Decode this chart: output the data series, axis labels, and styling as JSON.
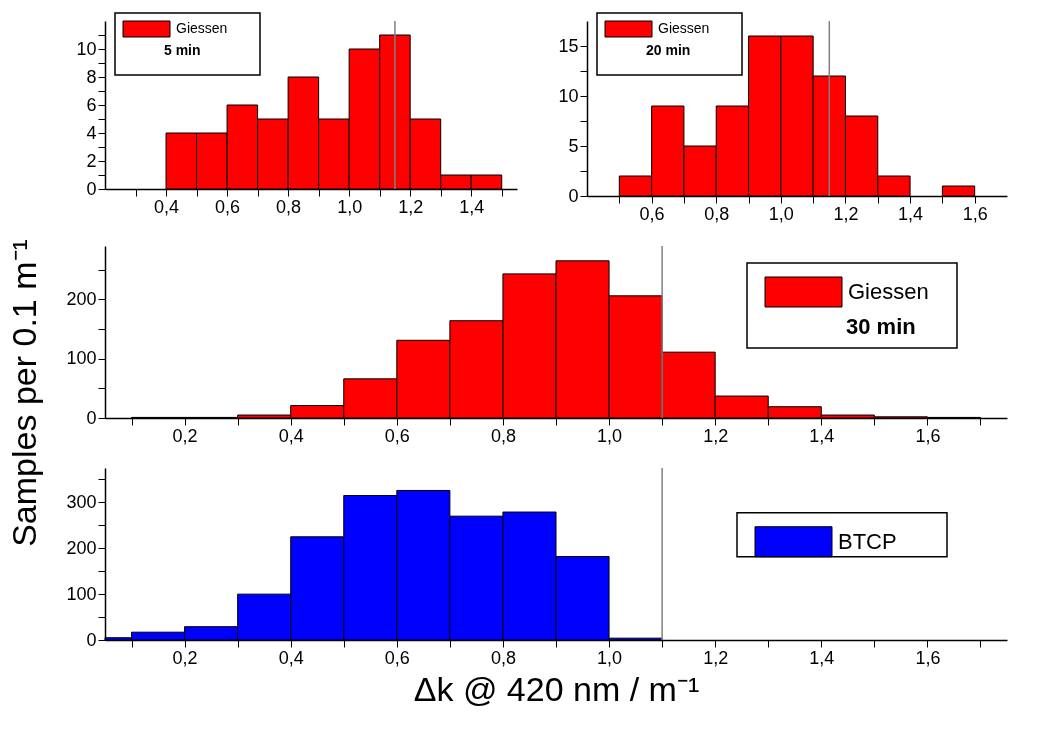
{
  "chart_data": [
    {
      "type": "histogram",
      "bins": [
        0.4,
        0.5,
        0.6,
        0.7,
        0.8,
        0.9,
        1.0,
        1.1,
        1.2,
        1.3,
        1.4,
        1.5
      ],
      "series": [
        {
          "name": "Giessen",
          "color": "#ff0000",
          "values": [
            4,
            4,
            6,
            5,
            8,
            5,
            10,
            11,
            5,
            1,
            1
          ]
        }
      ],
      "annotations": [
        "5 min"
      ],
      "legend": "top left",
      "xlim": [
        0.2,
        1.55
      ],
      "ylim": [
        0,
        12
      ],
      "xticks": [
        {
          "value": 0.3,
          "label": null
        },
        {
          "value": 0.4,
          "label": "0,4"
        },
        {
          "value": 0.5,
          "label": null
        },
        {
          "value": 0.6,
          "label": "0,6"
        },
        {
          "value": 0.7,
          "label": null
        },
        {
          "value": 0.8,
          "label": "0,8"
        },
        {
          "value": 0.9,
          "label": null
        },
        {
          "value": 1.0,
          "label": "1,0"
        },
        {
          "value": 1.1,
          "label": null
        },
        {
          "value": 1.2,
          "label": "1,2"
        },
        {
          "value": 1.3,
          "label": null
        },
        {
          "value": 1.4,
          "label": "1,4"
        },
        {
          "value": 1.5,
          "label": null
        }
      ],
      "yticks": [
        0,
        {
          "value": 1,
          "label": null
        },
        2,
        {
          "value": 3,
          "label": null
        },
        4,
        {
          "value": 5,
          "label": null
        },
        6,
        {
          "value": 7,
          "label": null
        },
        8,
        {
          "value": 9,
          "label": null
        },
        10,
        {
          "value": 11,
          "label": null
        }
      ],
      "ref_lines": [
        {
          "axis": "x",
          "value": 1.15,
          "color": "#808080"
        }
      ]
    },
    {
      "type": "histogram",
      "bins": [
        0.5,
        0.6,
        0.7,
        0.8,
        0.9,
        1.0,
        1.1,
        1.2,
        1.3,
        1.4,
        1.5,
        1.6
      ],
      "series": [
        {
          "name": "Giessen",
          "color": "#ff0000",
          "values": [
            2,
            9,
            5,
            9,
            16,
            16,
            12,
            8,
            2,
            0,
            1
          ]
        }
      ],
      "annotations": [
        "20 min"
      ],
      "legend": "top left",
      "xlim": [
        0.4,
        1.7
      ],
      "ylim": [
        0,
        17.5
      ],
      "xticks": [
        {
          "value": 0.5,
          "label": null
        },
        {
          "value": 0.6,
          "label": "0,6"
        },
        {
          "value": 0.7,
          "label": null
        },
        {
          "value": 0.8,
          "label": "0,8"
        },
        {
          "value": 0.9,
          "label": null
        },
        {
          "value": 1.0,
          "label": "1,0"
        },
        {
          "value": 1.1,
          "label": null
        },
        {
          "value": 1.2,
          "label": "1,2"
        },
        {
          "value": 1.3,
          "label": null
        },
        {
          "value": 1.4,
          "label": "1,4"
        },
        {
          "value": 1.5,
          "label": null
        },
        {
          "value": 1.6,
          "label": "1,6"
        }
      ],
      "yticks": [
        0,
        {
          "value": 2.5,
          "label": null
        },
        5,
        {
          "value": 7.5,
          "label": null
        },
        10,
        {
          "value": 12.5,
          "label": null
        },
        15
      ],
      "ref_lines": [
        {
          "axis": "x",
          "value": 1.15,
          "color": "#808080"
        }
      ]
    },
    {
      "type": "histogram",
      "bins": [
        0.1,
        0.2,
        0.3,
        0.4,
        0.5,
        0.6,
        0.7,
        0.8,
        0.9,
        1.0,
        1.1,
        1.2,
        1.3,
        1.4,
        1.5,
        1.6,
        1.7
      ],
      "series": [
        {
          "name": "Giessen",
          "color": "#ff0000",
          "values": [
            1,
            1,
            5,
            21,
            66,
            131,
            164,
            243,
            265,
            206,
            111,
            37,
            19,
            5,
            2,
            1
          ]
        }
      ],
      "annotations": [
        "30 min"
      ],
      "legend": "top right",
      "ylabel": "Samples per 0.1 m⁻¹",
      "xlim": [
        0.05,
        1.75
      ],
      "ylim": [
        0,
        290
      ],
      "xticks": [
        {
          "value": 0.1,
          "label": null
        },
        {
          "value": 0.2,
          "label": "0,2"
        },
        {
          "value": 0.3,
          "label": null
        },
        {
          "value": 0.4,
          "label": "0,4"
        },
        {
          "value": 0.5,
          "label": null
        },
        {
          "value": 0.6,
          "label": "0,6"
        },
        {
          "value": 0.7,
          "label": null
        },
        {
          "value": 0.8,
          "label": "0,8"
        },
        {
          "value": 0.9,
          "label": null
        },
        {
          "value": 1.0,
          "label": "1,0"
        },
        {
          "value": 1.1,
          "label": null
        },
        {
          "value": 1.2,
          "label": "1,2"
        },
        {
          "value": 1.3,
          "label": null
        },
        {
          "value": 1.4,
          "label": "1,4"
        },
        {
          "value": 1.5,
          "label": null
        },
        {
          "value": 1.6,
          "label": "1,6"
        },
        {
          "value": 1.7,
          "label": null
        }
      ],
      "yticks": [
        0,
        {
          "value": 50,
          "label": null
        },
        100,
        {
          "value": 150,
          "label": null
        },
        200,
        {
          "value": 250,
          "label": null
        }
      ],
      "ref_lines": [
        {
          "axis": "x",
          "value": 1.1,
          "color": "#808080"
        }
      ]
    },
    {
      "type": "histogram",
      "bins": [
        0.05,
        0.1,
        0.2,
        0.3,
        0.4,
        0.5,
        0.6,
        0.7,
        0.8,
        0.9,
        1.0,
        1.1
      ],
      "series": [
        {
          "name": "BTCP",
          "color": "#0000ff",
          "values": [
            5,
            17,
            29,
            100,
            225,
            315,
            326,
            270,
            279,
            182,
            4
          ]
        }
      ],
      "legend": "right",
      "xlabel": "Δk @ 420 nm  /  m⁻¹",
      "xlim": [
        0.05,
        1.75
      ],
      "ylim": [
        0,
        375
      ],
      "xticks": [
        {
          "value": 0.1,
          "label": null
        },
        {
          "value": 0.2,
          "label": "0,2"
        },
        {
          "value": 0.3,
          "label": null
        },
        {
          "value": 0.4,
          "label": "0,4"
        },
        {
          "value": 0.5,
          "label": null
        },
        {
          "value": 0.6,
          "label": "0,6"
        },
        {
          "value": 0.7,
          "label": null
        },
        {
          "value": 0.8,
          "label": "0,8"
        },
        {
          "value": 0.9,
          "label": null
        },
        {
          "value": 1.0,
          "label": "1,0"
        },
        {
          "value": 1.1,
          "label": null
        },
        {
          "value": 1.2,
          "label": "1,2"
        },
        {
          "value": 1.3,
          "label": null
        },
        {
          "value": 1.4,
          "label": "1,4"
        },
        {
          "value": 1.5,
          "label": null
        },
        {
          "value": 1.6,
          "label": "1,6"
        },
        {
          "value": 1.7,
          "label": null
        }
      ],
      "yticks": [
        0,
        {
          "value": 50,
          "label": null
        },
        100,
        {
          "value": 150,
          "label": null
        },
        200,
        {
          "value": 250,
          "label": null
        },
        300,
        {
          "value": 350,
          "label": null
        }
      ],
      "ref_lines": [
        {
          "axis": "x",
          "value": 1.1,
          "color": "#808080"
        }
      ]
    }
  ]
}
